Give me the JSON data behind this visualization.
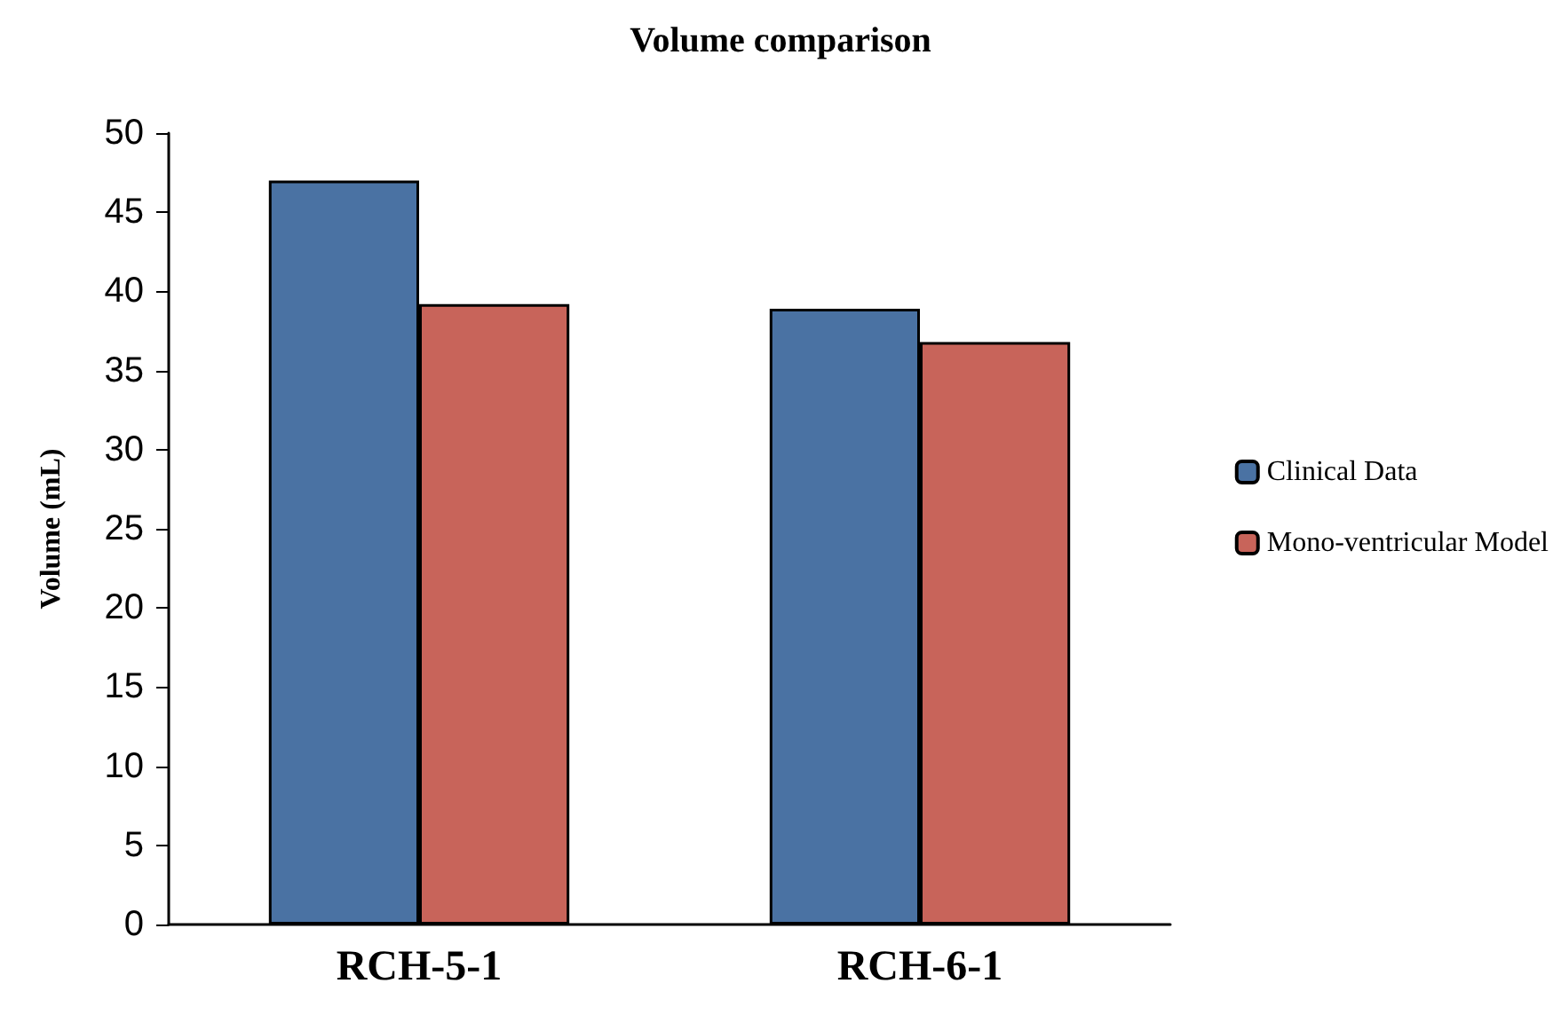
{
  "chart_data": {
    "type": "bar",
    "title": "Volume comparison",
    "ylabel": "Volume (mL)",
    "categories": [
      "RCH-5-1",
      "RCH-6-1"
    ],
    "series": [
      {
        "name": "Clinical Data",
        "color": "#4a72a3",
        "values": [
          47,
          38.9
        ]
      },
      {
        "name": "Mono-ventricular Model",
        "color": "#c8645a",
        "values": [
          39.2,
          36.8
        ]
      }
    ],
    "ylim": [
      0,
      50
    ],
    "yticks": [
      0,
      5,
      10,
      15,
      20,
      25,
      30,
      35,
      40,
      45,
      50
    ],
    "grid": false,
    "legend": "right"
  }
}
